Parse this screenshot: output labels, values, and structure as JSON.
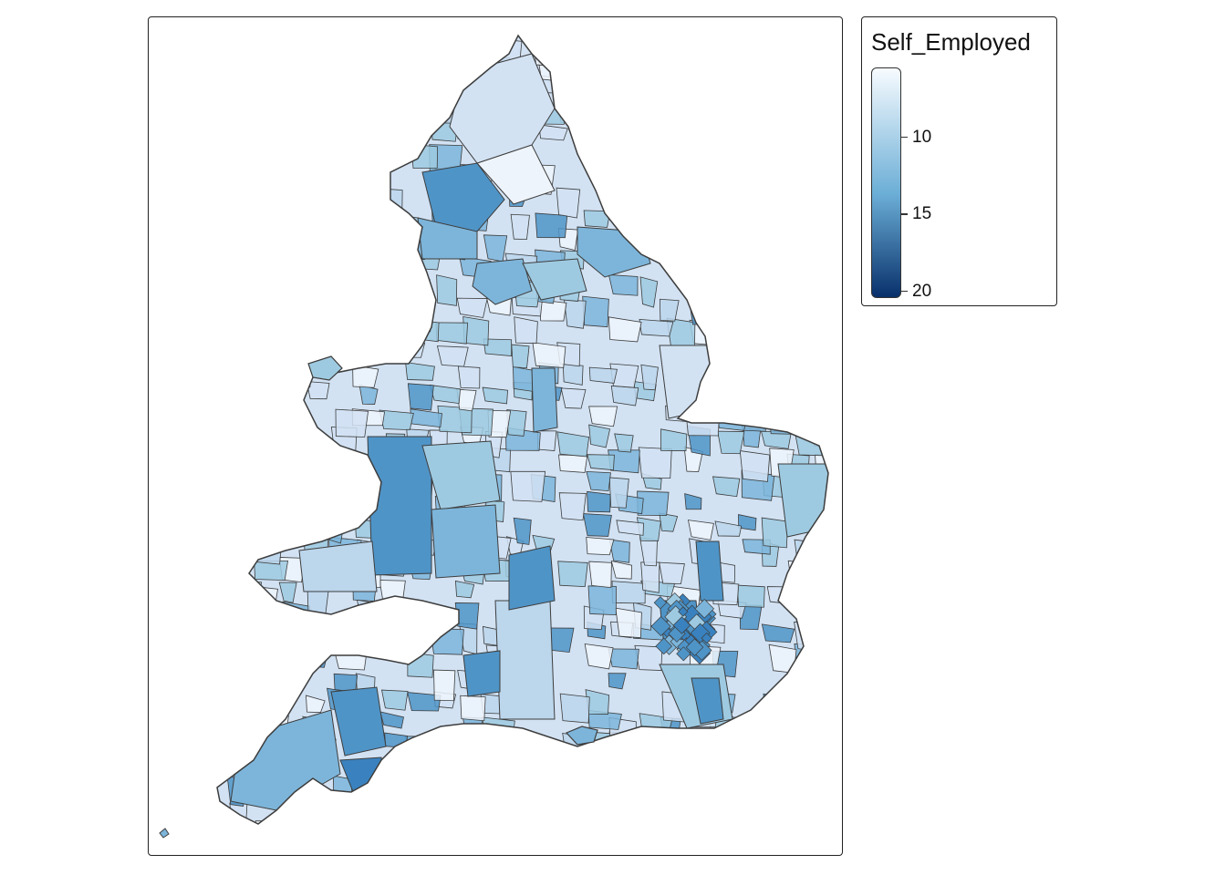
{
  "legend": {
    "title": "Self_Employed",
    "ticks": [
      {
        "label": "10",
        "value": 10
      },
      {
        "label": "15",
        "value": 15
      },
      {
        "label": "20",
        "value": 20
      }
    ],
    "range": [
      5.5,
      20.5
    ],
    "colors": {
      "low": "#f7fbff",
      "mid": "#6baed6",
      "high": "#08306b"
    }
  },
  "map": {
    "fill_colors": {
      "very_light": "#eef4fb",
      "light": "#d2e2f3",
      "light_mid": "#bcd6ec",
      "mid": "#9ecae1",
      "mid_dark": "#7db5da",
      "dark": "#4f94c7",
      "darkest": "#3a82bf"
    },
    "border_color": "#3d3d3d"
  }
}
